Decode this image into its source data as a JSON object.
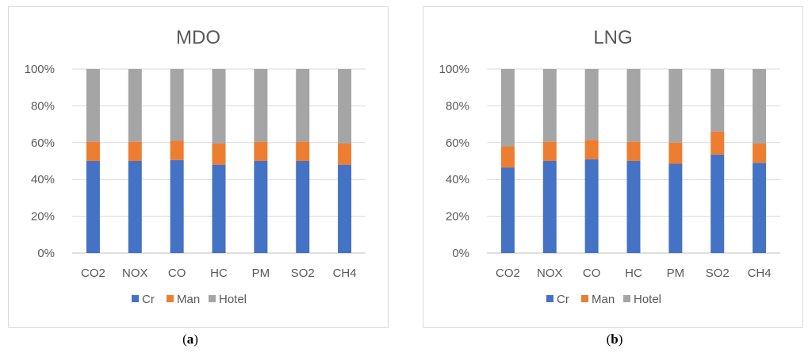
{
  "chart_data": [
    {
      "type": "bar",
      "stacked": "percent",
      "title": "MDO",
      "categories": [
        "CO2",
        "NOX",
        "CO",
        "HC",
        "PM",
        "SO2",
        "CH4"
      ],
      "series": [
        {
          "name": "Cr",
          "color": "#4472c4",
          "values": [
            50,
            50,
            50.5,
            48,
            50,
            50,
            48
          ]
        },
        {
          "name": "Man",
          "color": "#ed7d31",
          "values": [
            10.5,
            10.5,
            10.5,
            11.5,
            10.5,
            10.5,
            11.5
          ]
        },
        {
          "name": "Hotel",
          "color": "#a5a5a5",
          "values": [
            39.5,
            39.5,
            39,
            40.5,
            39.5,
            39.5,
            40.5
          ]
        }
      ],
      "y_ticks": [
        "0%",
        "20%",
        "40%",
        "60%",
        "80%",
        "100%"
      ],
      "ylim": [
        0,
        100
      ],
      "legend": "bottom",
      "caption": "a"
    },
    {
      "type": "bar",
      "stacked": "percent",
      "title": "LNG",
      "categories": [
        "CO2",
        "NOX",
        "CO",
        "HC",
        "PM",
        "SO2",
        "CH4"
      ],
      "series": [
        {
          "name": "Cr",
          "color": "#4472c4",
          "values": [
            46.5,
            50,
            51,
            50,
            48.5,
            53.5,
            49
          ]
        },
        {
          "name": "Man",
          "color": "#ed7d31",
          "values": [
            11.5,
            10.5,
            10.5,
            10.5,
            11.5,
            12.5,
            10.5
          ]
        },
        {
          "name": "Hotel",
          "color": "#a5a5a5",
          "values": [
            42,
            39.5,
            38.5,
            39.5,
            40,
            34,
            40.5
          ]
        }
      ],
      "y_ticks": [
        "0%",
        "20%",
        "40%",
        "60%",
        "80%",
        "100%"
      ],
      "ylim": [
        0,
        100
      ],
      "legend": "bottom",
      "caption": "b"
    }
  ],
  "captions": {
    "a": {
      "open": "(",
      "letter": "a",
      "close": ")"
    },
    "b": {
      "open": "(",
      "letter": "b",
      "close": ")"
    }
  }
}
